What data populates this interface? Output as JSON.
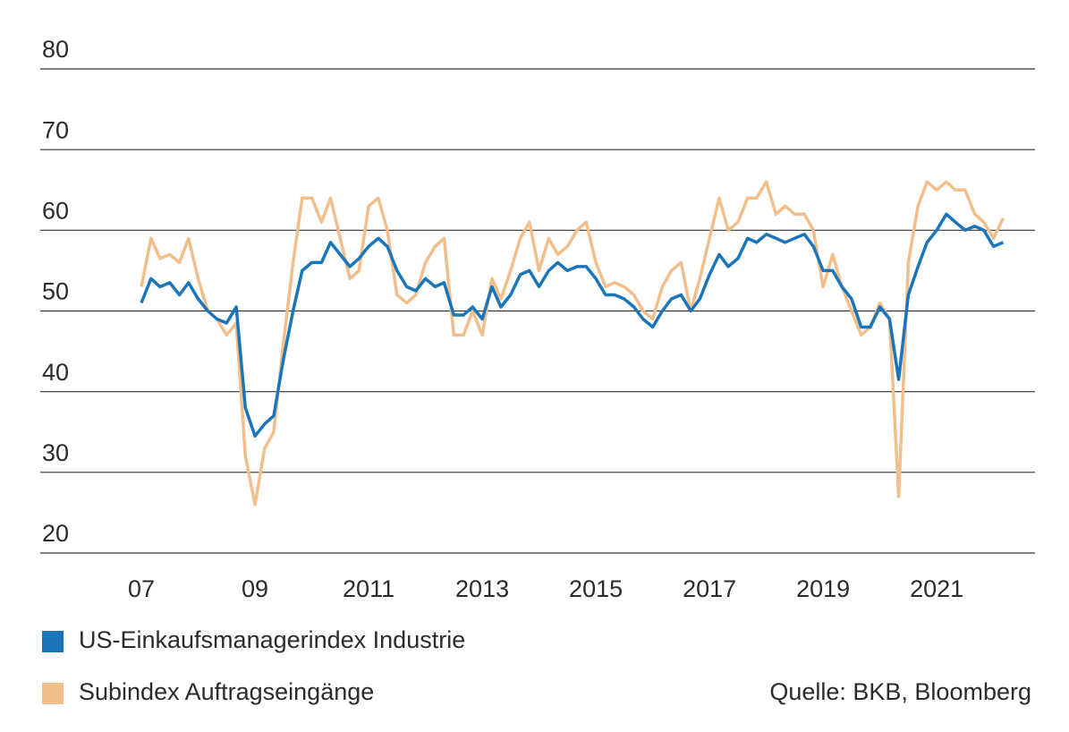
{
  "chart_data": {
    "type": "line",
    "x": [
      2007,
      2007.17,
      2007.33,
      2007.5,
      2007.67,
      2007.83,
      2008,
      2008.17,
      2008.33,
      2008.5,
      2008.67,
      2008.83,
      2009,
      2009.17,
      2009.33,
      2009.5,
      2009.67,
      2009.83,
      2010,
      2010.17,
      2010.33,
      2010.5,
      2010.67,
      2010.83,
      2011,
      2011.17,
      2011.33,
      2011.5,
      2011.67,
      2011.83,
      2012,
      2012.17,
      2012.33,
      2012.5,
      2012.67,
      2012.83,
      2013,
      2013.17,
      2013.33,
      2013.5,
      2013.67,
      2013.83,
      2014,
      2014.17,
      2014.33,
      2014.5,
      2014.67,
      2014.83,
      2015,
      2015.17,
      2015.33,
      2015.5,
      2015.67,
      2015.83,
      2016,
      2016.17,
      2016.33,
      2016.5,
      2016.67,
      2016.83,
      2017,
      2017.17,
      2017.33,
      2017.5,
      2017.67,
      2017.83,
      2018,
      2018.17,
      2018.33,
      2018.5,
      2018.67,
      2018.83,
      2019,
      2019.17,
      2019.33,
      2019.5,
      2019.67,
      2019.83,
      2020,
      2020.17,
      2020.33,
      2020.5,
      2020.67,
      2020.83,
      2021,
      2021.17,
      2021.33,
      2021.5,
      2021.67,
      2021.83,
      2022,
      2022.17
    ],
    "series": [
      {
        "name": "US-Einkaufsmanagerindex Industrie",
        "color": "#1b76b9",
        "values": [
          51,
          54,
          53,
          53.5,
          52,
          53.5,
          51.5,
          50,
          49,
          48.5,
          50.5,
          38,
          34.5,
          36,
          37,
          44,
          50,
          55,
          56,
          56,
          58.5,
          57,
          55.5,
          56.5,
          58,
          59,
          58,
          55,
          53,
          52.5,
          54,
          53,
          53.5,
          49.5,
          49.5,
          50.5,
          49,
          53,
          50.5,
          52,
          54.5,
          55,
          53,
          55,
          56,
          55,
          55.5,
          55.5,
          54,
          52,
          52,
          51.5,
          50.5,
          49,
          48,
          50,
          51.5,
          52,
          50,
          51.5,
          54.5,
          57,
          55.5,
          56.5,
          59,
          58.5,
          59.5,
          59,
          58.5,
          59,
          59.5,
          58,
          55,
          55,
          53,
          51.5,
          48,
          48,
          50.5,
          49,
          41.5,
          52,
          55.5,
          58.5,
          60,
          62,
          61,
          60,
          60.5,
          60,
          58,
          58.5
        ]
      },
      {
        "name": "Subindex Auftragseingänge",
        "color": "#f2be8b",
        "values": [
          53,
          59,
          56.5,
          57,
          56,
          59,
          54,
          50,
          49,
          47,
          48.5,
          32,
          26,
          33,
          35,
          46,
          56,
          64,
          64,
          61,
          64,
          59,
          54,
          55,
          63,
          64,
          60,
          52,
          51,
          52,
          56,
          58,
          59,
          47,
          47,
          50,
          47,
          54,
          51.5,
          55,
          59,
          61,
          55,
          59,
          57,
          58,
          60,
          61,
          56,
          53,
          53.5,
          53,
          52,
          50,
          49,
          53,
          55,
          56,
          50,
          54,
          59,
          64,
          60,
          61,
          64,
          64,
          66,
          62,
          63,
          62,
          62,
          60,
          53,
          57,
          53,
          50,
          47,
          48,
          51,
          49,
          27,
          56,
          63,
          66,
          65,
          66,
          65,
          65,
          62,
          61,
          59,
          61.5
        ]
      }
    ],
    "xlim": [
      2005.22,
      2022.73
    ],
    "xticks": [
      {
        "value": 2007,
        "label": "07"
      },
      {
        "value": 2009,
        "label": "09"
      },
      2011,
      2013,
      2015,
      2017,
      2019,
      2021
    ],
    "ylim": [
      20,
      80
    ],
    "yticks": [
      20,
      30,
      40,
      50,
      60,
      70,
      80
    ],
    "grid": true,
    "source": "Quelle: BKB, Bloomberg"
  }
}
